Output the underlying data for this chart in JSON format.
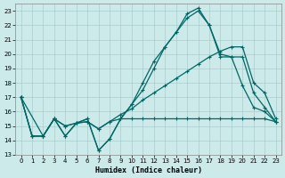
{
  "xlabel": "Humidex (Indice chaleur)",
  "bg_color": "#cceaea",
  "grid_color": "#aacccc",
  "line_color": "#006666",
  "xlim": [
    -0.5,
    23.5
  ],
  "ylim": [
    13,
    23.5
  ],
  "yticks": [
    13,
    14,
    15,
    16,
    17,
    18,
    19,
    20,
    21,
    22,
    23
  ],
  "xticks": [
    0,
    1,
    2,
    3,
    4,
    5,
    6,
    7,
    8,
    9,
    10,
    11,
    12,
    13,
    14,
    15,
    16,
    17,
    18,
    19,
    20,
    21,
    22,
    23
  ],
  "lines": [
    {
      "x": [
        0,
        1,
        2,
        3,
        4,
        5,
        6,
        7,
        8,
        9,
        10,
        11,
        12,
        13,
        14,
        15,
        16,
        17,
        18,
        19,
        20,
        21,
        22,
        23
      ],
      "y": [
        17.0,
        14.3,
        14.3,
        15.5,
        15.0,
        15.2,
        15.3,
        14.8,
        15.3,
        15.5,
        15.5,
        15.5,
        15.5,
        15.5,
        15.5,
        15.5,
        15.5,
        15.5,
        15.5,
        15.5,
        15.5,
        15.5,
        15.5,
        15.3
      ]
    },
    {
      "x": [
        0,
        1,
        2,
        3,
        4,
        5,
        6,
        7,
        8,
        9,
        10,
        11,
        12,
        13,
        14,
        15,
        16,
        17,
        18,
        19,
        20,
        21,
        22,
        23
      ],
      "y": [
        17.0,
        14.3,
        14.3,
        15.5,
        15.0,
        15.2,
        15.3,
        14.8,
        15.3,
        15.8,
        16.2,
        16.8,
        17.3,
        17.8,
        18.3,
        18.8,
        19.3,
        19.8,
        20.2,
        20.5,
        20.5,
        18.0,
        17.3,
        15.5
      ]
    },
    {
      "x": [
        0,
        1,
        2,
        3,
        4,
        5,
        6,
        7,
        8,
        9,
        10,
        11,
        12,
        13,
        14,
        15,
        16,
        17,
        18,
        19,
        20,
        21,
        22,
        23
      ],
      "y": [
        17.0,
        14.3,
        14.3,
        15.5,
        14.3,
        15.2,
        15.5,
        13.3,
        14.1,
        15.5,
        16.5,
        17.5,
        19.0,
        20.5,
        21.5,
        22.5,
        23.0,
        22.0,
        19.8,
        19.8,
        19.8,
        17.3,
        16.3,
        15.3
      ]
    },
    {
      "x": [
        0,
        2,
        3,
        4,
        5,
        6,
        7,
        8,
        9,
        10,
        11,
        12,
        13,
        14,
        15,
        16,
        17,
        18,
        19,
        20,
        21,
        22,
        23
      ],
      "y": [
        17.0,
        14.3,
        15.5,
        14.3,
        15.2,
        15.5,
        13.3,
        14.1,
        15.5,
        16.5,
        18.0,
        19.5,
        20.5,
        21.5,
        22.8,
        23.2,
        22.0,
        20.0,
        19.8,
        17.8,
        16.3,
        16.0,
        15.3
      ]
    }
  ]
}
